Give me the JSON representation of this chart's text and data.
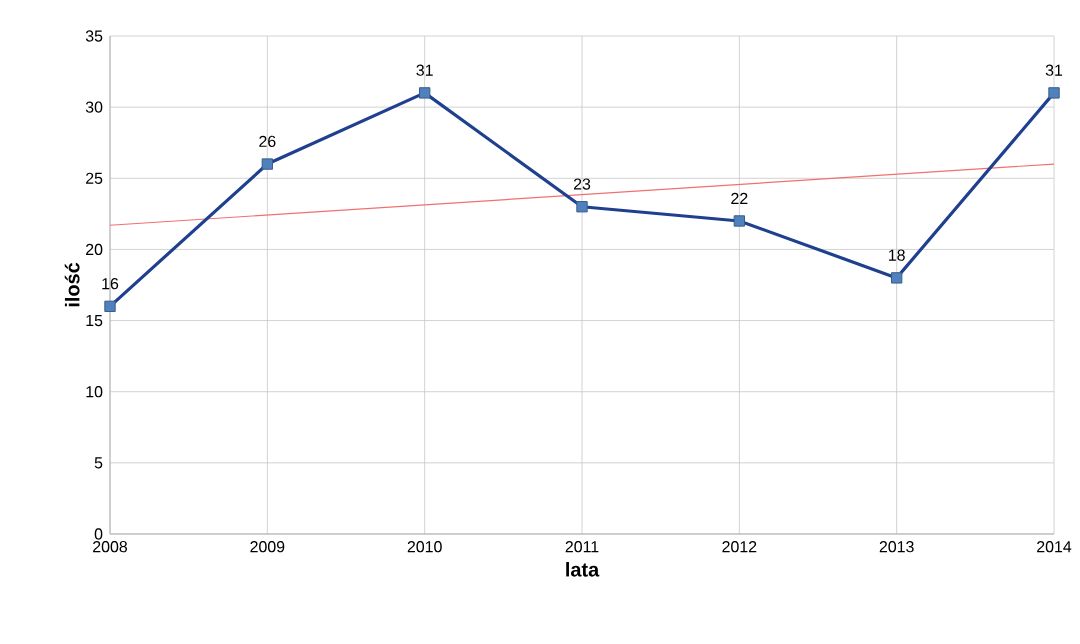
{
  "chart_data": {
    "type": "line",
    "xlabel": "lata",
    "ylabel": "ilość",
    "x": [
      2008,
      2009,
      2010,
      2011,
      2012,
      2013,
      2014
    ],
    "xlim": [
      2008,
      2014
    ],
    "xticks": [
      2008,
      2009,
      2010,
      2011,
      2012,
      2013,
      2014
    ],
    "ylim": [
      0,
      35
    ],
    "yticks": [
      0,
      5,
      10,
      15,
      20,
      25,
      30,
      35
    ],
    "grid": true,
    "series": [
      {
        "color": "#1f3f8f",
        "marker": "square",
        "line_style": "solid",
        "values": [
          16,
          26,
          31,
          23,
          22,
          18,
          31
        ],
        "value_labels": [
          "16",
          "26",
          "31",
          "23",
          "22",
          "18",
          "31"
        ]
      },
      {
        "type": "line",
        "color": "#f07070",
        "marker": "none",
        "line_style": "solid",
        "x": [
          2008,
          2014
        ],
        "values": [
          21.7,
          26.0
        ]
      }
    ]
  }
}
